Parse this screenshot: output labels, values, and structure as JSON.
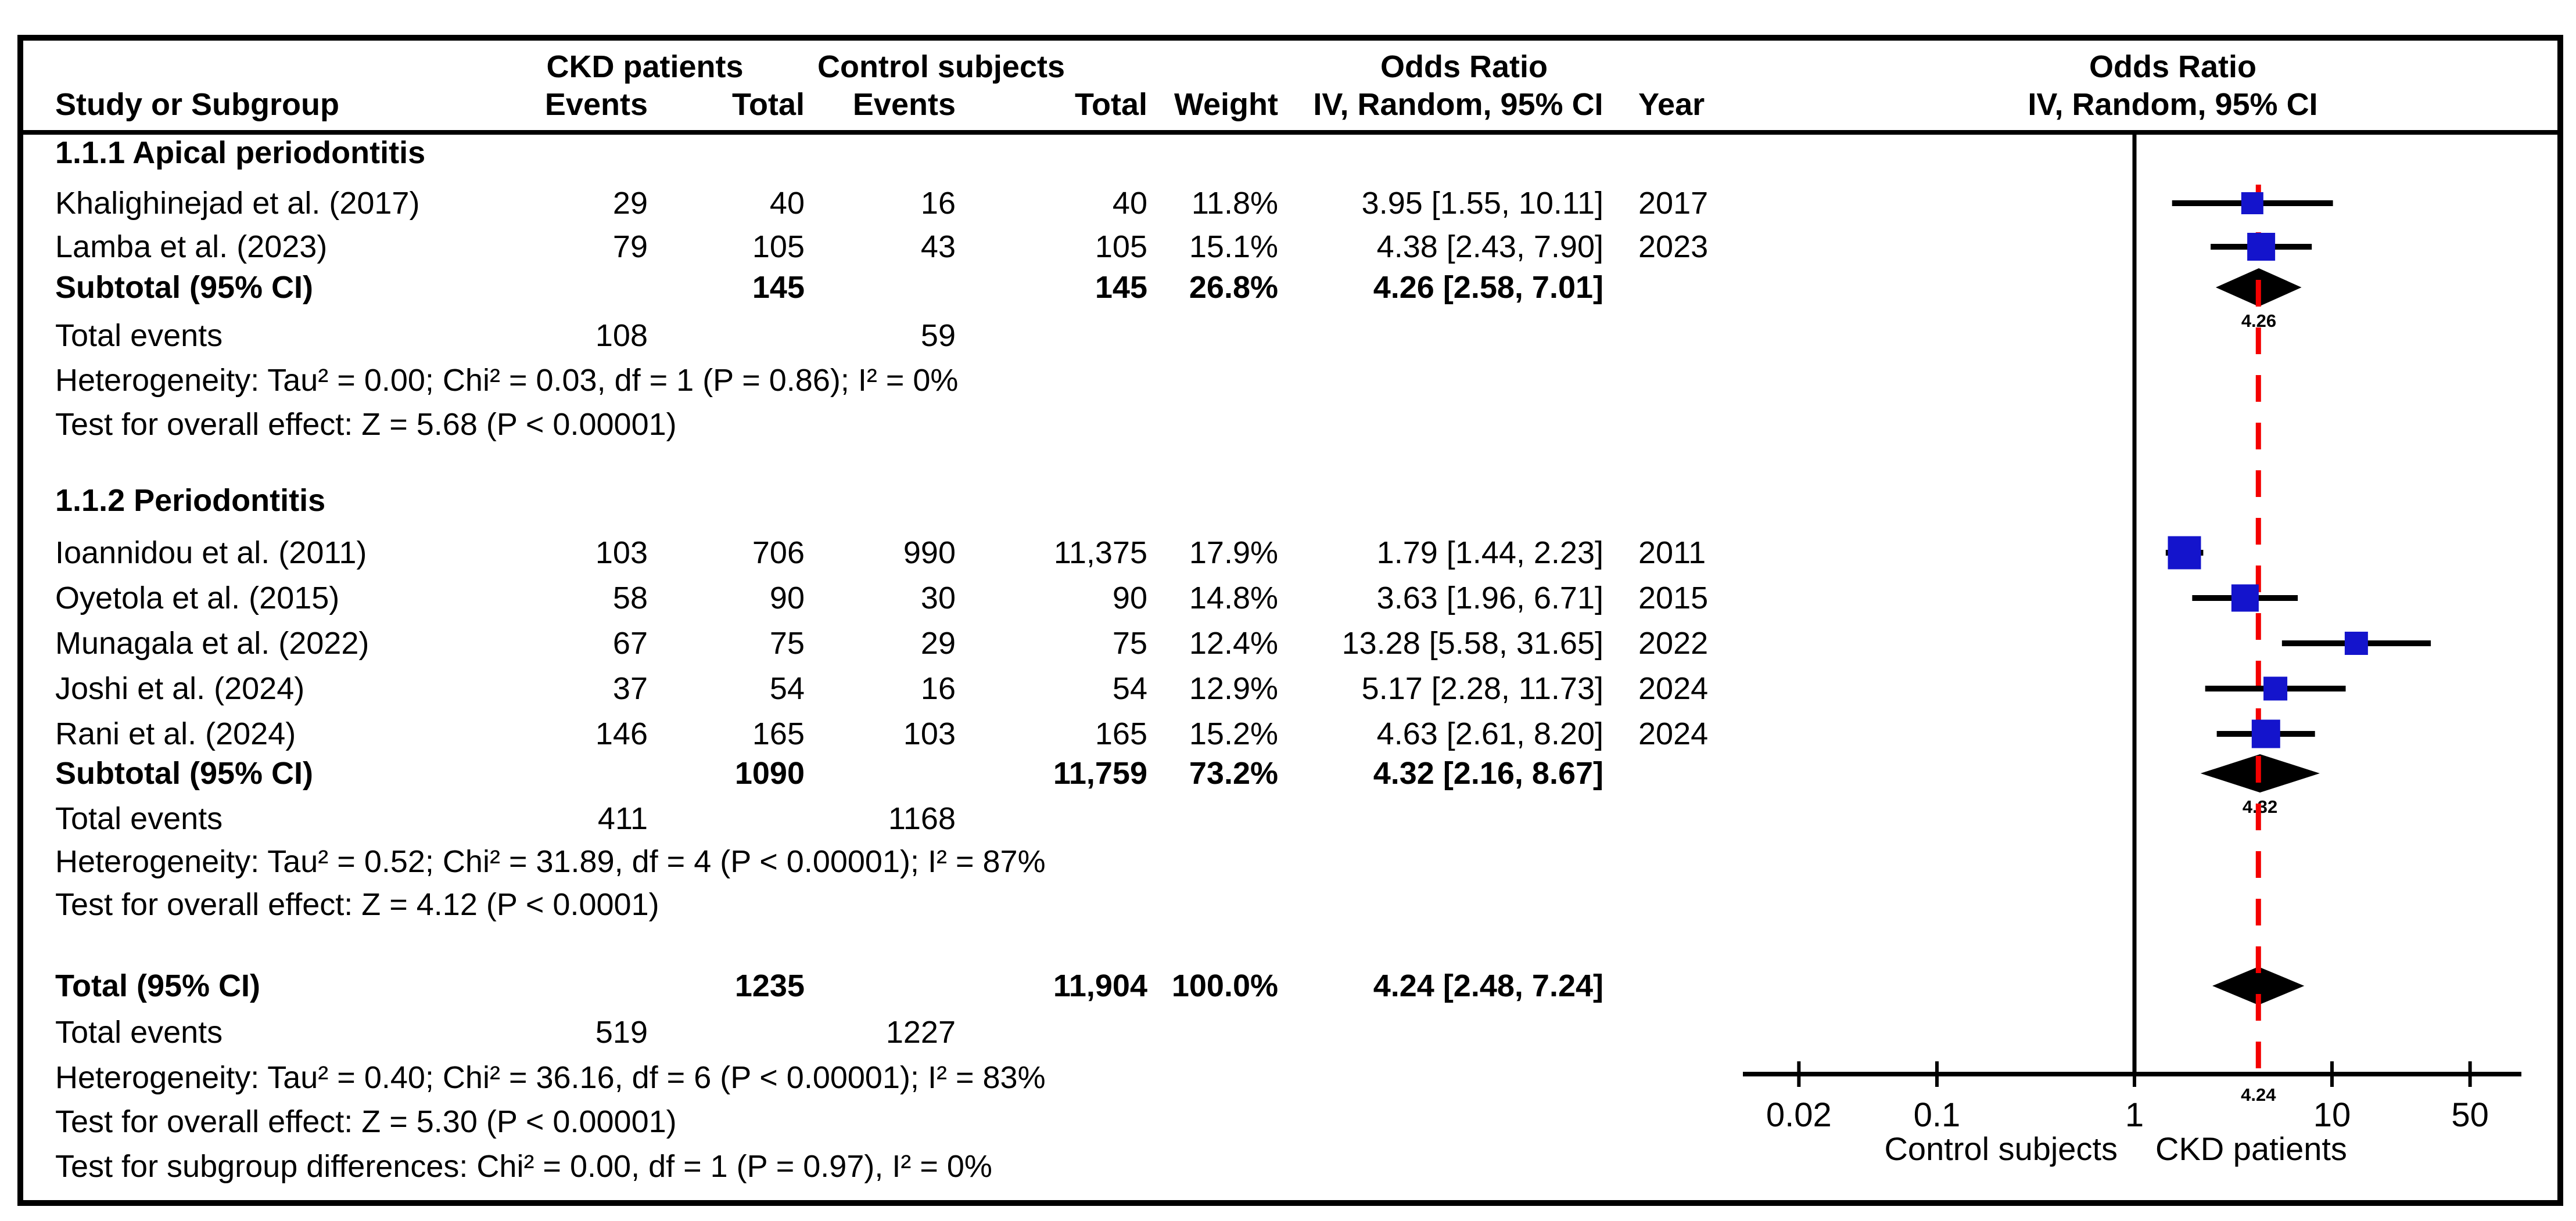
{
  "header": {
    "study_col": "Study or Subgroup",
    "ckd_group": "CKD patients",
    "control_group": "Control subjects",
    "or_group": "Odds Ratio",
    "events_col": "Events",
    "total_col": "Total",
    "weight_col": "Weight",
    "iv_col": "IV, Random, 95% CI",
    "year_col": "Year",
    "plot_title": "Odds Ratio",
    "plot_subtitle": "IV, Random, 95% CI"
  },
  "subgroups": [
    {
      "title": "1.1.1 Apical periodontitis",
      "studies": [
        {
          "name": "Khalighinejad et al. (2017)",
          "ckd_events": "29",
          "ckd_total": "40",
          "control_events": "16",
          "control_total": "40",
          "weight": "11.8%",
          "or_ci": "3.95 [1.55, 10.11]",
          "year": "2017",
          "or": 3.95,
          "ci_low": 1.55,
          "ci_high": 10.11,
          "weight_value": 11.8
        },
        {
          "name": "Lamba et al. (2023)",
          "ckd_events": "79",
          "ckd_total": "105",
          "control_events": "43",
          "control_total": "105",
          "weight": "15.1%",
          "or_ci": "4.38 [2.43, 7.90]",
          "year": "2023",
          "or": 4.38,
          "ci_low": 2.43,
          "ci_high": 7.9,
          "weight_value": 15.1
        }
      ],
      "subtotal": {
        "label": "Subtotal (95% CI)",
        "ckd_total": "145",
        "control_total": "145",
        "weight": "26.8%",
        "or_ci": "4.26 [2.58, 7.01]",
        "or": 4.26,
        "ci_low": 2.58,
        "ci_high": 7.01,
        "diamond_label": "4.26"
      },
      "total_events": {
        "label": "Total events",
        "ckd": "108",
        "control": "59"
      },
      "heterogeneity": "Heterogeneity: Tau² = 0.00; Chi² = 0.03, df = 1 (P = 0.86); I² = 0%",
      "overall_effect": "Test for overall effect: Z = 5.68 (P < 0.00001)"
    },
    {
      "title": "1.1.2 Periodontitis",
      "studies": [
        {
          "name": "Ioannidou et al. (2011)",
          "ckd_events": "103",
          "ckd_total": "706",
          "control_events": "990",
          "control_total": "11,375",
          "weight": "17.9%",
          "or_ci": "1.79 [1.44, 2.23]",
          "year": "2011",
          "or": 1.79,
          "ci_low": 1.44,
          "ci_high": 2.23,
          "weight_value": 17.9
        },
        {
          "name": "Oyetola et al. (2015)",
          "ckd_events": "58",
          "ckd_total": "90",
          "control_events": "30",
          "control_total": "90",
          "weight": "14.8%",
          "or_ci": "3.63 [1.96, 6.71]",
          "year": "2015",
          "or": 3.63,
          "ci_low": 1.96,
          "ci_high": 6.71,
          "weight_value": 14.8
        },
        {
          "name": "Munagala et al. (2022)",
          "ckd_events": "67",
          "ckd_total": "75",
          "control_events": "29",
          "control_total": "75",
          "weight": "12.4%",
          "or_ci": "13.28 [5.58, 31.65]",
          "year": "2022",
          "or": 13.28,
          "ci_low": 5.58,
          "ci_high": 31.65,
          "weight_value": 12.4
        },
        {
          "name": "Joshi et al. (2024)",
          "ckd_events": "37",
          "ckd_total": "54",
          "control_events": "16",
          "control_total": "54",
          "weight": "12.9%",
          "or_ci": "5.17 [2.28, 11.73]",
          "year": "2024",
          "or": 5.17,
          "ci_low": 2.28,
          "ci_high": 11.73,
          "weight_value": 12.9
        },
        {
          "name": "Rani et al. (2024)",
          "ckd_events": "146",
          "ckd_total": "165",
          "control_events": "103",
          "control_total": "165",
          "weight": "15.2%",
          "or_ci": "4.63 [2.61, 8.20]",
          "year": "2024",
          "or": 4.63,
          "ci_low": 2.61,
          "ci_high": 8.2,
          "weight_value": 15.2
        }
      ],
      "subtotal": {
        "label": "Subtotal (95% CI)",
        "ckd_total": "1090",
        "control_total": "11,759",
        "weight": "73.2%",
        "or_ci": "4.32 [2.16, 8.67]",
        "or": 4.32,
        "ci_low": 2.16,
        "ci_high": 8.67,
        "diamond_label": "4.32"
      },
      "total_events": {
        "label": "Total events",
        "ckd": "411",
        "control": "1168"
      },
      "heterogeneity": "Heterogeneity: Tau² = 0.52; Chi² = 31.89, df = 4 (P < 0.00001); I² = 87%",
      "overall_effect": "Test for overall effect: Z = 4.12 (P < 0.0001)"
    }
  ],
  "total_section": {
    "label": "Total (95% CI)",
    "ckd_total": "1235",
    "control_total": "11,904",
    "weight": "100.0%",
    "or_ci": "4.24 [2.48, 7.24]",
    "or": 4.24,
    "ci_low": 2.48,
    "ci_high": 7.24,
    "total_events": {
      "label": "Total events",
      "ckd": "519",
      "control": "1227"
    },
    "heterogeneity": "Heterogeneity: Tau² = 0.40; Chi² = 36.16, df = 6 (P < 0.00001); I² = 83%",
    "overall_effect": "Test for overall effect: Z = 5.30 (P < 0.00001)",
    "subgroup_differences": "Test for subgroup differences: Chi² = 0.00, df = 1 (P = 0.97), I² = 0%"
  },
  "axis": {
    "ticks": [
      0.02,
      0.1,
      1,
      10,
      50
    ],
    "tick_labels": [
      "0.02",
      "0.1",
      "1",
      "10",
      "50"
    ],
    "overall_label": "4.24",
    "left_label": "Control subjects",
    "right_label": "CKD patients"
  },
  "colors": {
    "marker_blue": "#1414cc",
    "overall_line_red": "#f40000",
    "ci_black": "#000000"
  },
  "chart_data": {
    "type": "scatter",
    "subtype": "forest-plot",
    "effect_measure": "Odds Ratio, IV, Random, 95% CI",
    "x_scale": "log",
    "x_ticks": [
      0.02,
      0.1,
      1,
      10,
      50
    ],
    "x_range": [
      0.01,
      100
    ],
    "xlabel_left": "Control subjects",
    "xlabel_right": "CKD patients",
    "groups": [
      {
        "name": "1.1.1 Apical periodontitis",
        "points": [
          {
            "study": "Khalighinejad et al. (2017)",
            "or": 3.95,
            "ci": [
              1.55,
              10.11
            ],
            "weight_pct": 11.8,
            "year": 2017
          },
          {
            "study": "Lamba et al. (2023)",
            "or": 4.38,
            "ci": [
              2.43,
              7.9
            ],
            "weight_pct": 15.1,
            "year": 2023
          }
        ],
        "summary": {
          "or": 4.26,
          "ci": [
            2.58,
            7.01
          ],
          "weight_pct": 26.8,
          "events": [
            108,
            59
          ],
          "totals": [
            145,
            145
          ],
          "i2": "0%"
        }
      },
      {
        "name": "1.1.2 Periodontitis",
        "points": [
          {
            "study": "Ioannidou et al. (2011)",
            "or": 1.79,
            "ci": [
              1.44,
              2.23
            ],
            "weight_pct": 17.9,
            "year": 2011
          },
          {
            "study": "Oyetola et al. (2015)",
            "or": 3.63,
            "ci": [
              1.96,
              6.71
            ],
            "weight_pct": 14.8,
            "year": 2015
          },
          {
            "study": "Munagala et al. (2022)",
            "or": 13.28,
            "ci": [
              5.58,
              31.65
            ],
            "weight_pct": 12.4,
            "year": 2022
          },
          {
            "study": "Joshi et al. (2024)",
            "or": 5.17,
            "ci": [
              2.28,
              11.73
            ],
            "weight_pct": 12.9,
            "year": 2024
          },
          {
            "study": "Rani et al. (2024)",
            "or": 4.63,
            "ci": [
              2.61,
              8.2
            ],
            "weight_pct": 15.2,
            "year": 2024
          }
        ],
        "summary": {
          "or": 4.32,
          "ci": [
            2.16,
            8.67
          ],
          "weight_pct": 73.2,
          "events": [
            411,
            1168
          ],
          "totals": [
            1090,
            11759
          ],
          "i2": "87%"
        }
      }
    ],
    "overall": {
      "or": 4.24,
      "ci": [
        2.48,
        7.24
      ],
      "weight_pct": 100.0,
      "events": [
        519,
        1227
      ],
      "totals": [
        1235,
        11904
      ],
      "i2": "83%"
    }
  }
}
